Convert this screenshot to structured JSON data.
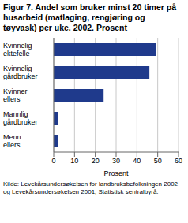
{
  "chart_data": {
    "type": "bar",
    "orientation": "horizontal",
    "title": "Figur 7.  Andel som bruker minst 20 timer på husarbeid (matlaging, rengjøring og tøyvask) per uke. 2002. Prosent",
    "categories": [
      "Kvinnelig ektefelle",
      "Kvinnelig gårdbruker",
      "Kvinner ellers",
      "Mannlig gårdbruker",
      "Menn ellers"
    ],
    "values": [
      49,
      46,
      24,
      2,
      2
    ],
    "color": "#1f3a8c",
    "x_label": "Prosent",
    "xlim": [
      0,
      60
    ],
    "xticks": [
      0,
      10,
      20,
      30,
      40,
      50,
      60
    ],
    "grid": true,
    "source": "Kilde: Levekårsundersøkelsen for landbruksbefolkningen 2002 og Levekårsundersøkelsen 2001, Statistisk sentralbyrå."
  }
}
